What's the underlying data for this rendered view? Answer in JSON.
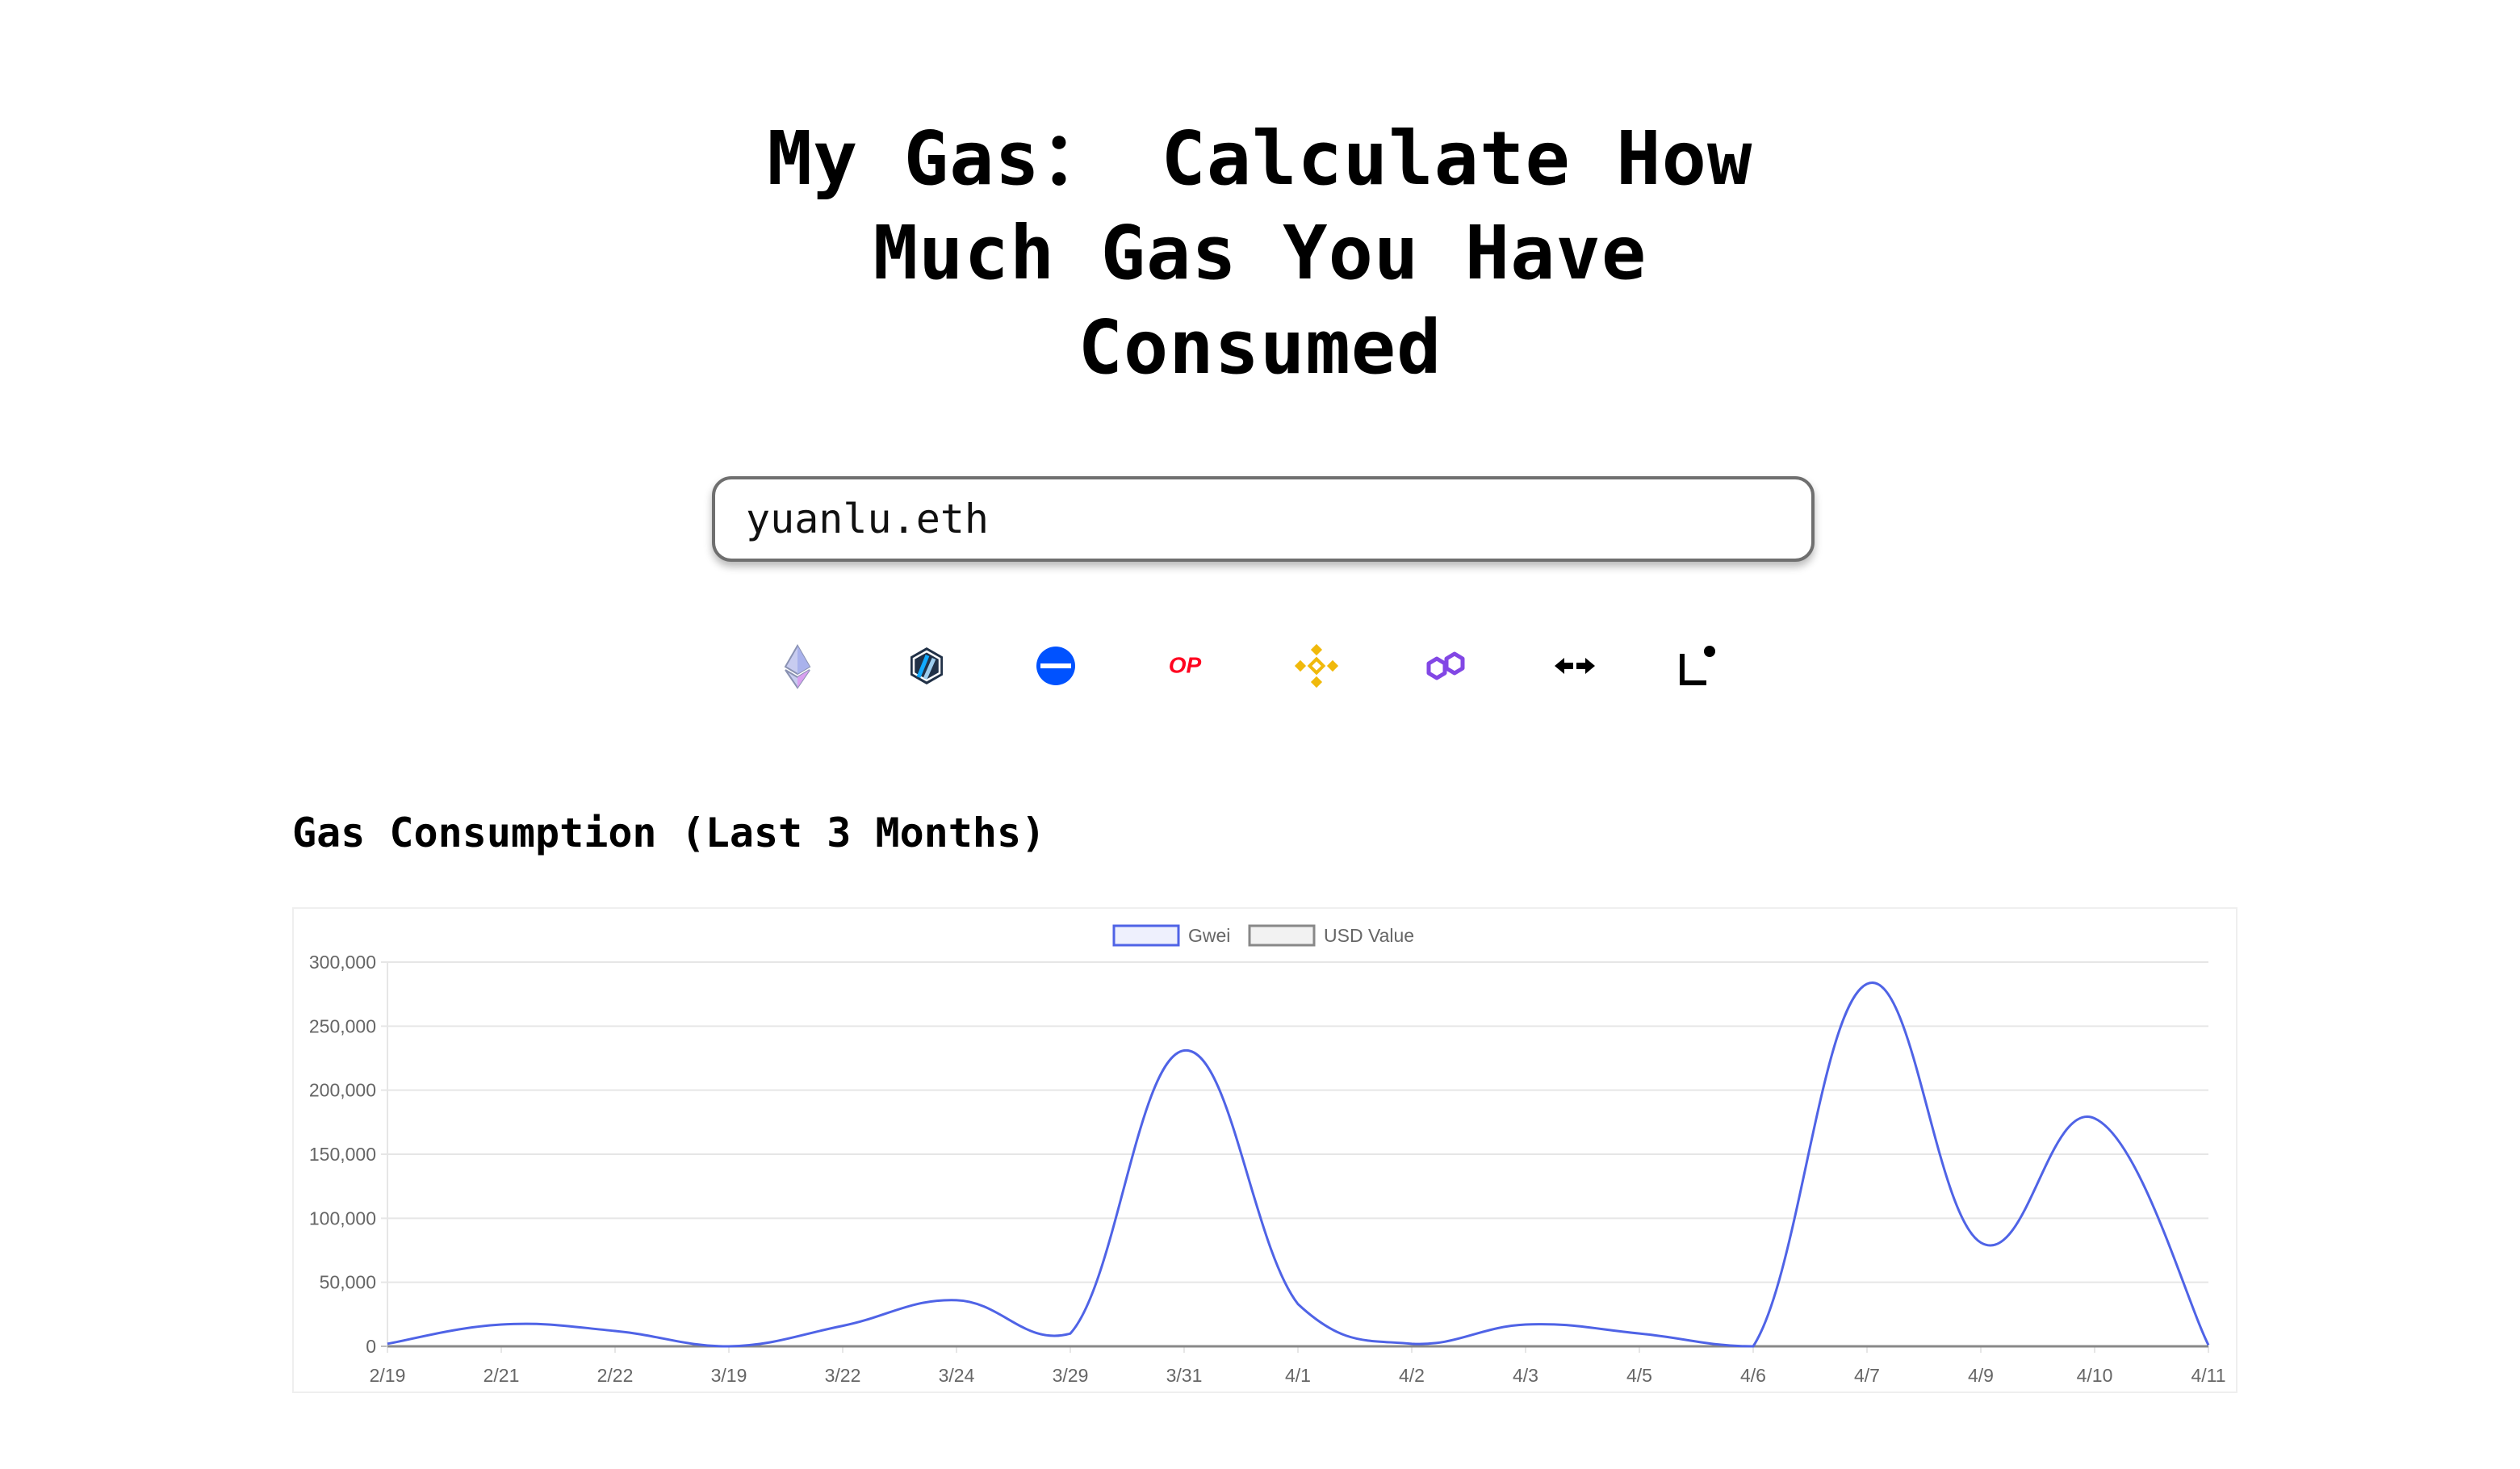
{
  "page": {
    "title_lines": [
      "My Gas： Calculate How",
      "Much Gas You Have",
      "Consumed"
    ],
    "search": {
      "value": "yuanlu.eth",
      "placeholder": ""
    },
    "chains": [
      {
        "name": "ethereum",
        "icon": "ethereum-icon",
        "color": "#8a92b2"
      },
      {
        "name": "arbitrum",
        "icon": "arbitrum-icon",
        "color": "#213147"
      },
      {
        "name": "base",
        "icon": "base-icon",
        "color": "#0052ff"
      },
      {
        "name": "optimism",
        "icon": "optimism-icon",
        "color": "#ff0420",
        "text": "OP"
      },
      {
        "name": "bnb",
        "icon": "bnb-icon",
        "color": "#f0b90b"
      },
      {
        "name": "polygon",
        "icon": "polygon-icon",
        "color": "#8247e5"
      },
      {
        "name": "zksync",
        "icon": "zksync-icon",
        "color": "#000000"
      },
      {
        "name": "linea",
        "icon": "linea-icon",
        "color": "#000000"
      }
    ],
    "section_title": "Gas Consumption (Last 3 Months)"
  },
  "chart_data": {
    "type": "line",
    "categories": [
      "2/19",
      "2/21",
      "2/22",
      "3/19",
      "3/22",
      "3/24",
      "3/29",
      "3/31",
      "4/1",
      "4/2",
      "4/3",
      "4/5",
      "4/6",
      "4/7",
      "4/9",
      "4/10",
      "4/11"
    ],
    "series": [
      {
        "name": "Gwei",
        "color": "#4f63e6",
        "values": [
          2000,
          17000,
          12000,
          0,
          16000,
          36000,
          10000,
          231000,
          33000,
          2000,
          17000,
          10000,
          0,
          283000,
          81000,
          178000,
          1000
        ]
      },
      {
        "name": "USD Value",
        "color": "#888888",
        "values": [
          0,
          0,
          0,
          0,
          0,
          0,
          0,
          0,
          0,
          0,
          0,
          0,
          0,
          0,
          0,
          0,
          0
        ]
      }
    ],
    "yticks": [
      "0",
      "50,000",
      "100,000",
      "150,000",
      "200,000",
      "250,000",
      "300,000"
    ],
    "ylim": [
      0,
      300000
    ],
    "grid": true,
    "legend_position": "top"
  }
}
